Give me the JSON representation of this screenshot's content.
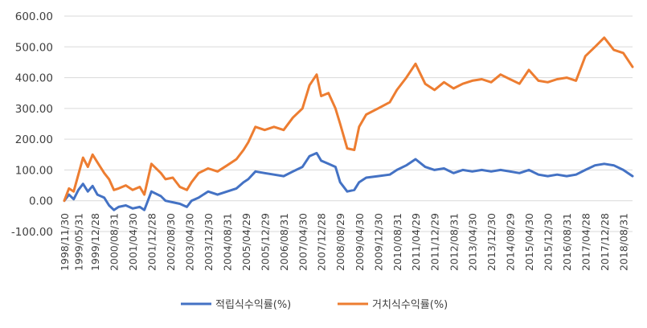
{
  "chart_data": {
    "type": "line",
    "ylim": [
      -100,
      600
    ],
    "yticks": [
      -100,
      0,
      100,
      200,
      300,
      400,
      500,
      600
    ],
    "ytick_labels": [
      "-100.00",
      "0.00",
      "100.00",
      "200.00",
      "300.00",
      "400.00",
      "500.00",
      "600.00"
    ],
    "x_start": "1998/11/30",
    "x_tick_labels": [
      "1998/11/30",
      "1999/05/31",
      "1999/12/28",
      "2000/08/31",
      "2001/04/30",
      "2001/12/28",
      "2002/08/30",
      "2003/04/30",
      "2003/12/30",
      "2004/08/31",
      "2005/04/29",
      "2005/12/29",
      "2006/08/31",
      "2007/04/30",
      "2007/12/28",
      "2008/08/29",
      "2009/04/30",
      "2009/12/30",
      "2010/08/31",
      "2011/04/29",
      "2011/12/29",
      "2012/08/31",
      "2013/04/30",
      "2013/12/30",
      "2014/08/29",
      "2015/04/30",
      "2015/12/30",
      "2016/08/31",
      "2017/04/28",
      "2017/12/28",
      "2018/08/31"
    ],
    "grid": "horizontal",
    "legend_position": "bottom",
    "series": [
      {
        "name": "적립식수익률(%)",
        "color": "#4472C4",
        "points": [
          [
            "1998/11/30",
            0
          ],
          [
            "1999/01/29",
            20
          ],
          [
            "1999/03/31",
            5
          ],
          [
            "1999/05/31",
            35
          ],
          [
            "1999/07/30",
            55
          ],
          [
            "1999/09/30",
            30
          ],
          [
            "1999/11/30",
            48
          ],
          [
            "2000/01/31",
            20
          ],
          [
            "2000/04/28",
            10
          ],
          [
            "2000/06/30",
            -15
          ],
          [
            "2000/08/31",
            -30
          ],
          [
            "2000/10/31",
            -20
          ],
          [
            "2001/01/31",
            -15
          ],
          [
            "2001/04/30",
            -25
          ],
          [
            "2001/07/31",
            -20
          ],
          [
            "2001/09/28",
            -30
          ],
          [
            "2001/12/28",
            30
          ],
          [
            "2002/04/30",
            15
          ],
          [
            "2002/06/28",
            0
          ],
          [
            "2002/09/30",
            -5
          ],
          [
            "2002/12/30",
            -10
          ],
          [
            "2003/03/31",
            -20
          ],
          [
            "2003/05/30",
            0
          ],
          [
            "2003/08/29",
            10
          ],
          [
            "2003/12/30",
            30
          ],
          [
            "2004/04/30",
            20
          ],
          [
            "2004/08/31",
            30
          ],
          [
            "2004/12/30",
            40
          ],
          [
            "2005/03/31",
            60
          ],
          [
            "2005/05/31",
            70
          ],
          [
            "2005/08/31",
            95
          ],
          [
            "2005/12/29",
            90
          ],
          [
            "2006/04/28",
            85
          ],
          [
            "2006/08/31",
            80
          ],
          [
            "2006/12/28",
            95
          ],
          [
            "2007/04/30",
            110
          ],
          [
            "2007/07/31",
            145
          ],
          [
            "2007/10/31",
            155
          ],
          [
            "2007/12/28",
            130
          ],
          [
            "2008/03/31",
            120
          ],
          [
            "2008/06/30",
            110
          ],
          [
            "2008/08/29",
            60
          ],
          [
            "2008/11/28",
            30
          ],
          [
            "2009/02/27",
            35
          ],
          [
            "2009/04/30",
            60
          ],
          [
            "2009/07/31",
            75
          ],
          [
            "2009/12/30",
            80
          ],
          [
            "2010/05/31",
            85
          ],
          [
            "2010/08/31",
            100
          ],
          [
            "2010/12/30",
            115
          ],
          [
            "2011/04/29",
            135
          ],
          [
            "2011/08/31",
            110
          ],
          [
            "2011/12/29",
            100
          ],
          [
            "2012/04/30",
            105
          ],
          [
            "2012/08/31",
            90
          ],
          [
            "2012/12/28",
            100
          ],
          [
            "2013/04/30",
            95
          ],
          [
            "2013/08/30",
            100
          ],
          [
            "2013/12/30",
            95
          ],
          [
            "2014/04/30",
            100
          ],
          [
            "2014/08/29",
            95
          ],
          [
            "2014/12/30",
            90
          ],
          [
            "2015/04/30",
            100
          ],
          [
            "2015/08/31",
            85
          ],
          [
            "2015/12/30",
            80
          ],
          [
            "2016/04/29",
            85
          ],
          [
            "2016/08/31",
            80
          ],
          [
            "2016/12/29",
            85
          ],
          [
            "2017/04/28",
            100
          ],
          [
            "2017/08/31",
            115
          ],
          [
            "2017/12/28",
            120
          ],
          [
            "2018/04/30",
            115
          ],
          [
            "2018/08/31",
            100
          ],
          [
            "2018/12/28",
            80
          ]
        ]
      },
      {
        "name": "거치식수익률(%)",
        "color": "#ED7D31",
        "points": [
          [
            "1998/11/30",
            0
          ],
          [
            "1999/01/29",
            40
          ],
          [
            "1999/03/31",
            30
          ],
          [
            "1999/05/31",
            85
          ],
          [
            "1999/07/30",
            140
          ],
          [
            "1999/09/30",
            110
          ],
          [
            "1999/11/30",
            150
          ],
          [
            "2000/01/31",
            125
          ],
          [
            "2000/04/28",
            90
          ],
          [
            "2000/06/30",
            70
          ],
          [
            "2000/08/31",
            35
          ],
          [
            "2000/10/31",
            40
          ],
          [
            "2001/01/31",
            50
          ],
          [
            "2001/04/30",
            35
          ],
          [
            "2001/07/31",
            45
          ],
          [
            "2001/09/28",
            20
          ],
          [
            "2001/12/28",
            120
          ],
          [
            "2002/04/30",
            90
          ],
          [
            "2002/06/28",
            70
          ],
          [
            "2002/09/30",
            75
          ],
          [
            "2002/12/30",
            45
          ],
          [
            "2003/03/31",
            35
          ],
          [
            "2003/05/30",
            60
          ],
          [
            "2003/08/29",
            90
          ],
          [
            "2003/12/30",
            105
          ],
          [
            "2004/04/30",
            95
          ],
          [
            "2004/08/31",
            115
          ],
          [
            "2004/12/30",
            135
          ],
          [
            "2005/03/31",
            165
          ],
          [
            "2005/05/31",
            190
          ],
          [
            "2005/08/31",
            240
          ],
          [
            "2005/12/29",
            230
          ],
          [
            "2006/04/28",
            240
          ],
          [
            "2006/08/31",
            230
          ],
          [
            "2006/12/28",
            270
          ],
          [
            "2007/04/30",
            300
          ],
          [
            "2007/07/31",
            375
          ],
          [
            "2007/10/31",
            410
          ],
          [
            "2007/12/28",
            340
          ],
          [
            "2008/03/31",
            350
          ],
          [
            "2008/06/30",
            300
          ],
          [
            "2008/08/29",
            250
          ],
          [
            "2008/11/28",
            170
          ],
          [
            "2009/02/27",
            165
          ],
          [
            "2009/04/30",
            240
          ],
          [
            "2009/07/31",
            280
          ],
          [
            "2009/12/30",
            300
          ],
          [
            "2010/05/31",
            320
          ],
          [
            "2010/08/31",
            360
          ],
          [
            "2010/12/30",
            400
          ],
          [
            "2011/04/29",
            445
          ],
          [
            "2011/08/31",
            380
          ],
          [
            "2011/12/29",
            360
          ],
          [
            "2012/04/30",
            385
          ],
          [
            "2012/08/31",
            365
          ],
          [
            "2012/12/28",
            380
          ],
          [
            "2013/04/30",
            390
          ],
          [
            "2013/08/30",
            395
          ],
          [
            "2013/12/30",
            385
          ],
          [
            "2014/04/30",
            410
          ],
          [
            "2014/08/29",
            395
          ],
          [
            "2014/12/30",
            380
          ],
          [
            "2015/04/30",
            425
          ],
          [
            "2015/08/31",
            390
          ],
          [
            "2015/12/30",
            385
          ],
          [
            "2016/04/29",
            395
          ],
          [
            "2016/08/31",
            400
          ],
          [
            "2016/12/29",
            390
          ],
          [
            "2017/04/28",
            470
          ],
          [
            "2017/08/31",
            500
          ],
          [
            "2017/12/28",
            530
          ],
          [
            "2018/04/30",
            490
          ],
          [
            "2018/08/31",
            480
          ],
          [
            "2018/12/28",
            435
          ]
        ]
      }
    ]
  }
}
